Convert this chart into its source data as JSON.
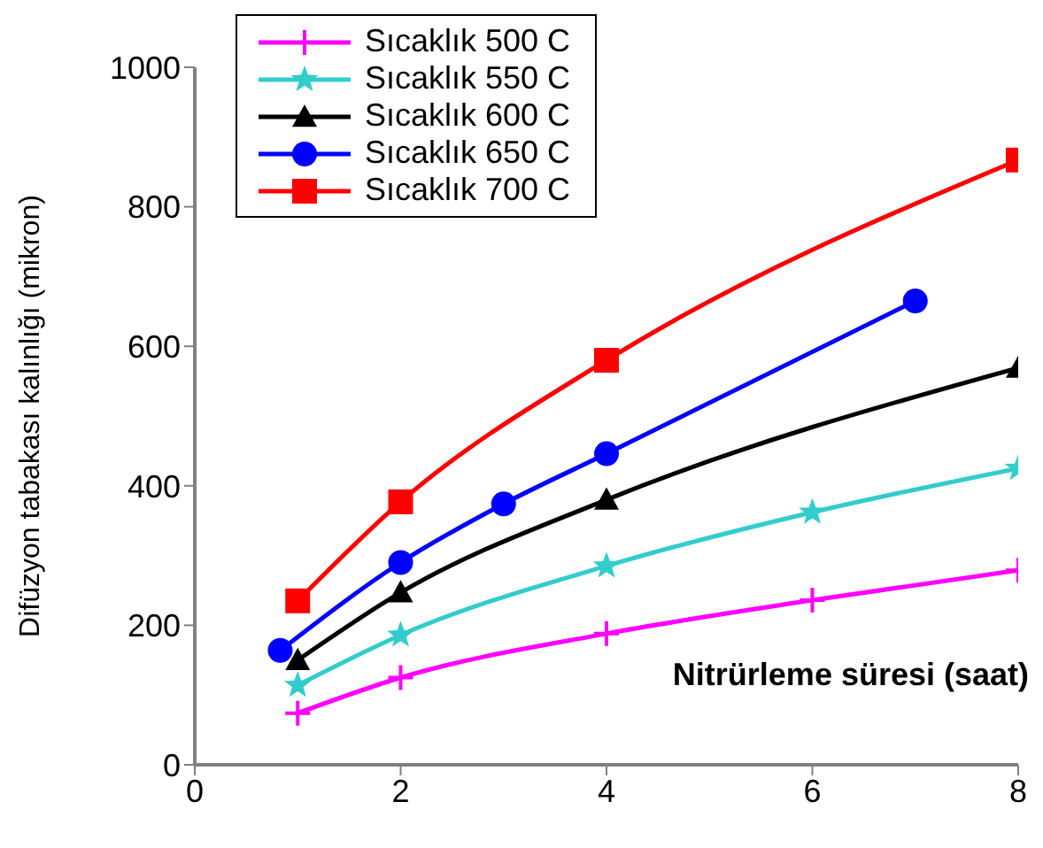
{
  "chart_data": {
    "type": "line",
    "xlabel": "Nitrürleme süresi (saat)",
    "ylabel": "Difüzyon tabakası kalınlığı (mikron)",
    "xlim": [
      0,
      8
    ],
    "xticks": [
      0,
      2,
      4,
      6,
      8
    ],
    "ylim": [
      0,
      1000
    ],
    "yticks": [
      0,
      200,
      400,
      600,
      800,
      1000
    ],
    "grid": false,
    "legend": "top left",
    "line_style": "solid",
    "series": [
      {
        "name": "Sıcaklık 500 C",
        "color": "#ff00ff",
        "marker": "cross",
        "x": [
          1,
          2,
          4,
          6,
          8
        ],
        "values": [
          74,
          125,
          188,
          236,
          279
        ]
      },
      {
        "name": "Sıcaklık 550 C",
        "color": "#33cccc",
        "marker": "star",
        "x": [
          1,
          2,
          4,
          6,
          8
        ],
        "values": [
          114,
          186,
          285,
          362,
          425
        ]
      },
      {
        "name": "Sıcaklık 600 C",
        "color": "#000000",
        "marker": "triangle",
        "x": [
          1,
          2,
          4,
          8
        ],
        "values": [
          150,
          247,
          380,
          569
        ]
      },
      {
        "name": "Sıcaklık 650 C",
        "color": "#0000ff",
        "marker": "circle",
        "x": [
          0.83,
          2,
          3,
          4,
          7
        ],
        "values": [
          164,
          290,
          374,
          446,
          665
        ]
      },
      {
        "name": "Sıcaklık 700 C",
        "color": "#ff0000",
        "marker": "square",
        "x": [
          1,
          2,
          4,
          8
        ],
        "values": [
          235,
          377,
          580,
          867
        ]
      }
    ]
  }
}
